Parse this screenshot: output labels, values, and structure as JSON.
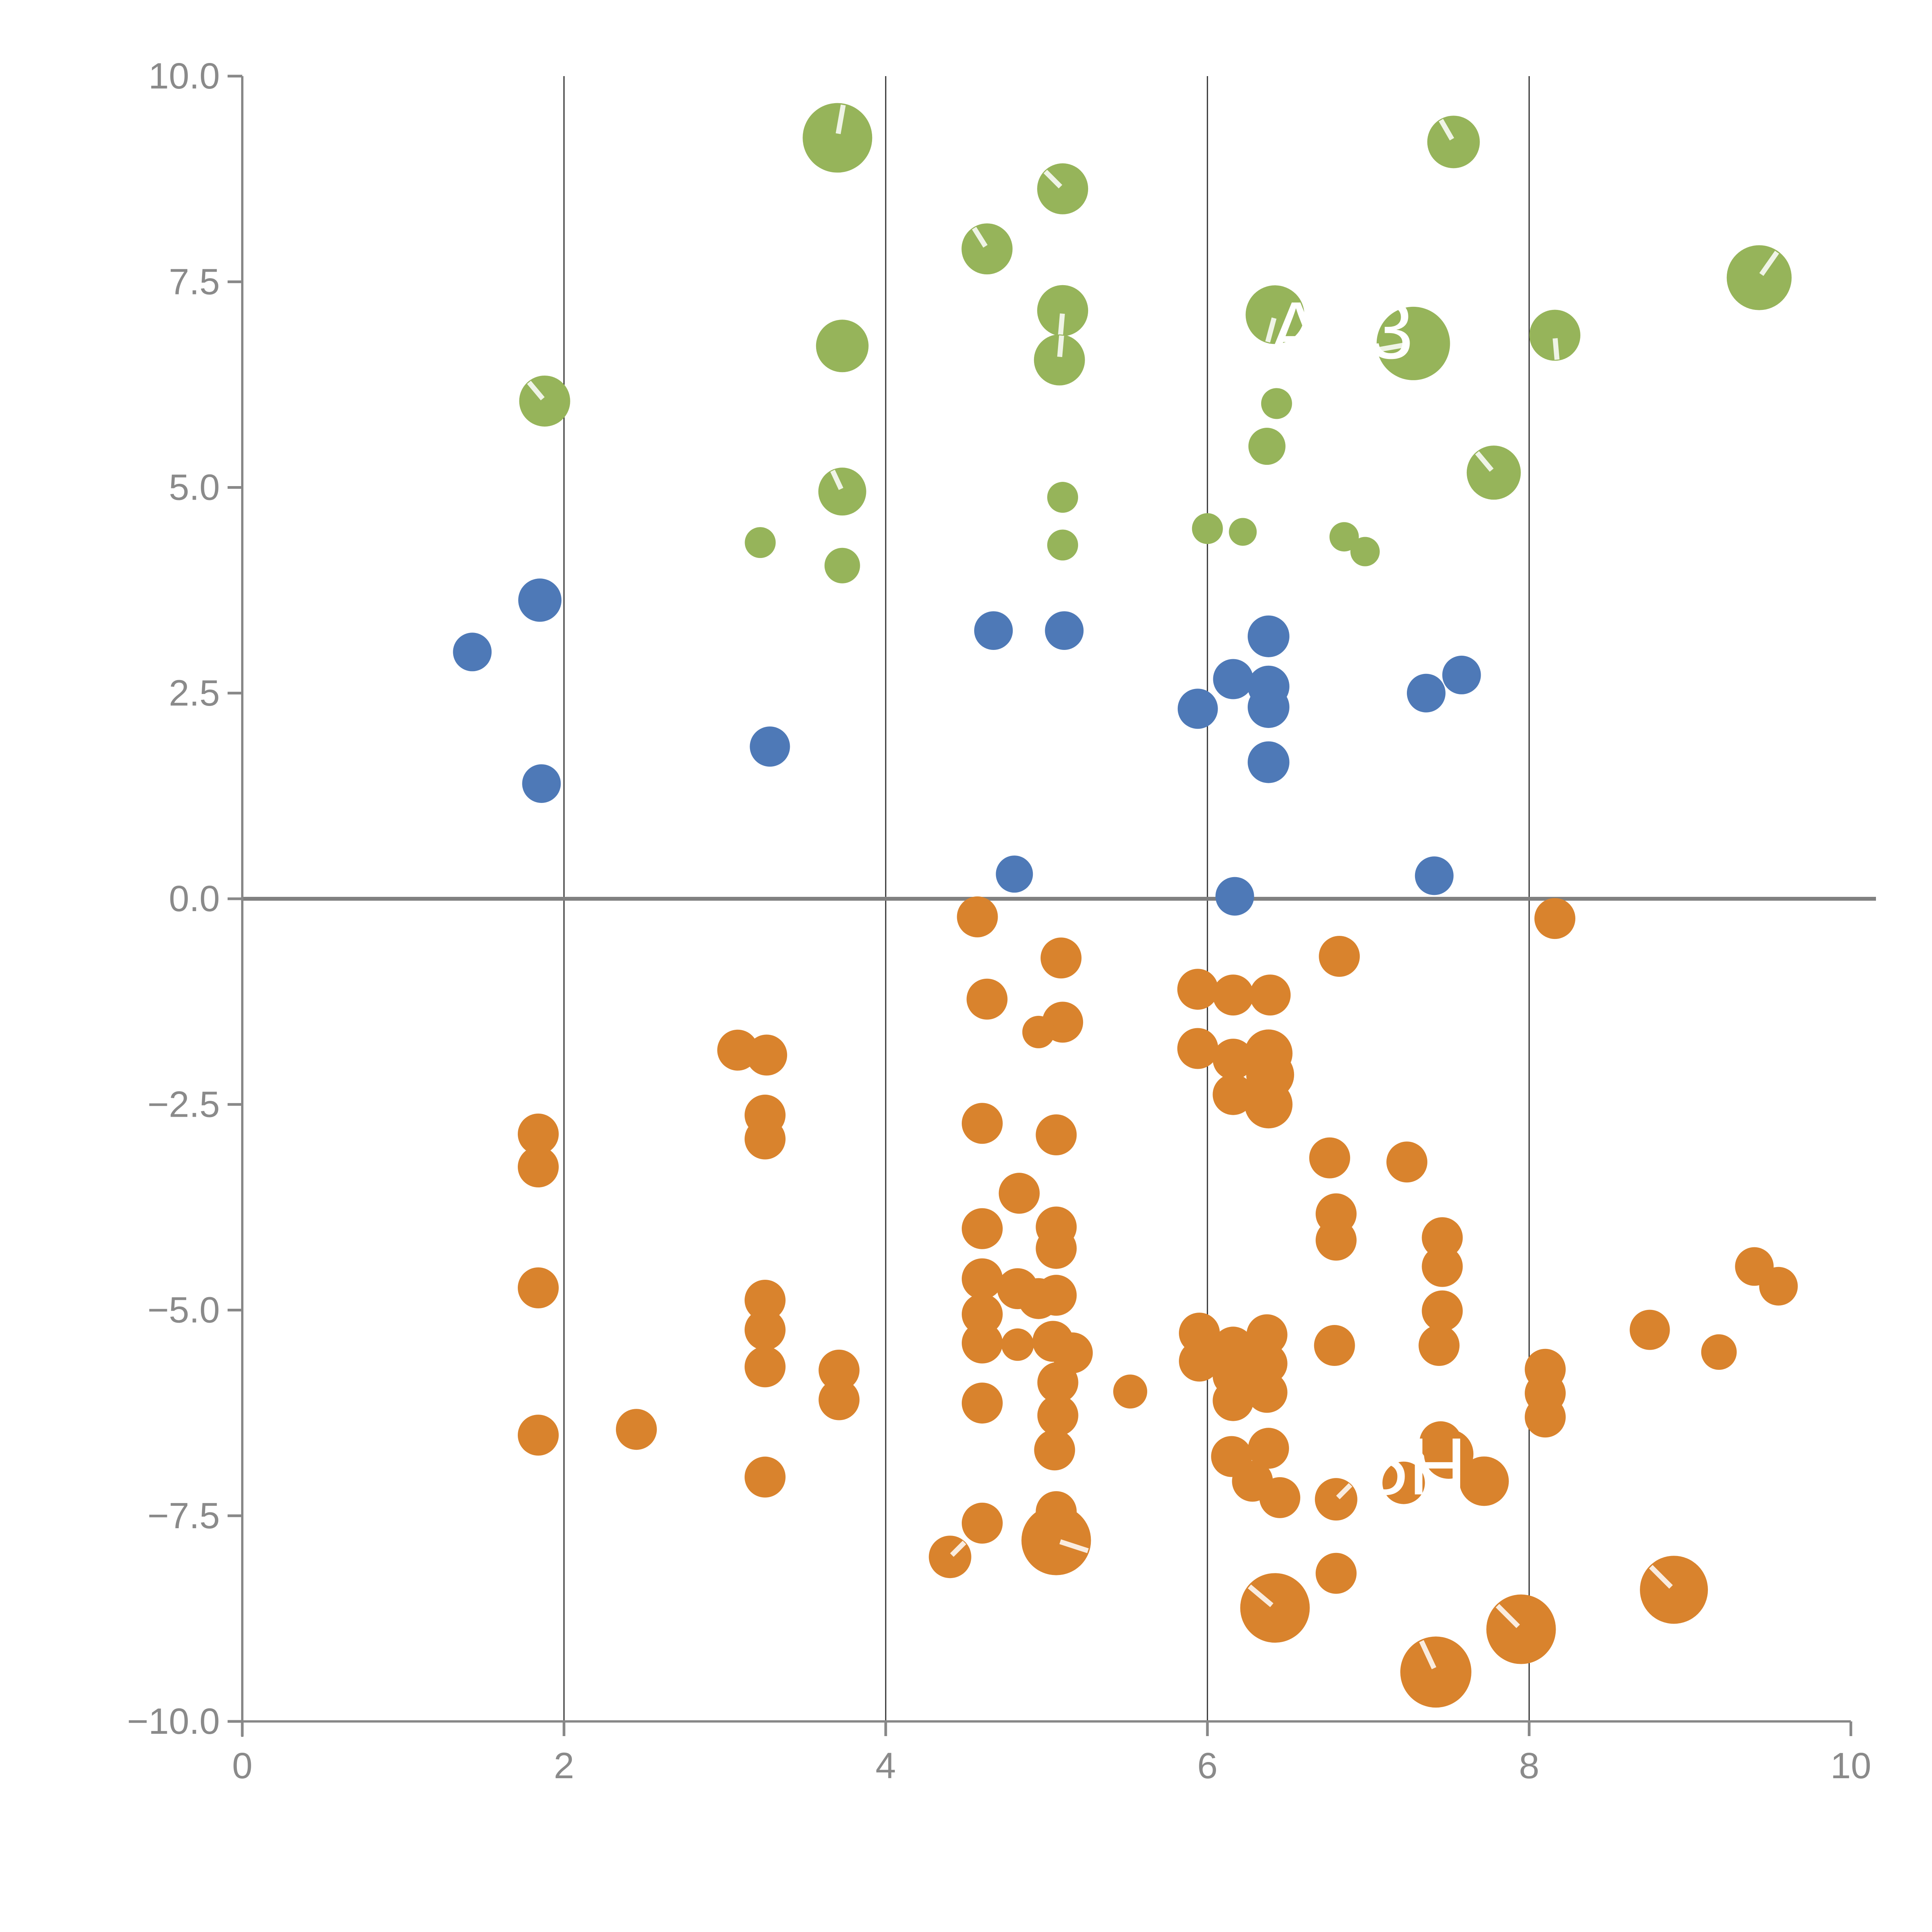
{
  "figure": {
    "title": "",
    "background": "#ffffff"
  },
  "chart_data": {
    "type": "scatter",
    "subtype": "bubble",
    "title": "",
    "xlabel": "",
    "ylabel": "",
    "xlim": [
      0,
      10
    ],
    "ylim": [
      -10,
      10
    ],
    "grid": "vertical-only",
    "grid_x": [
      2,
      4,
      6,
      8
    ],
    "zero_rule_y": 0,
    "x_tick_labels": [
      "0",
      "2",
      "4",
      "6",
      "8",
      "10"
    ],
    "x_tick_values": [
      0,
      2,
      4,
      6,
      8,
      10
    ],
    "y_tick_labels": [
      "10.0",
      "7.5",
      "5.0",
      "2.5",
      "0.0",
      "−2.5",
      "−5.0",
      "−7.5",
      "−10.0"
    ],
    "y_tick_values": [
      10,
      7.5,
      5,
      2.5,
      0,
      -2.5,
      -5,
      -7.5,
      -10
    ],
    "point_columns": [
      "x",
      "y",
      "radius_px",
      "slash_angle_deg"
    ],
    "series": [
      {
        "name": "green",
        "color": "#96B45A",
        "points": [
          [
            3.7,
            9.25,
            90,
            80
          ],
          [
            5.1,
            8.63,
            66,
            135
          ],
          [
            4.63,
            7.9,
            66,
            122
          ],
          [
            5.1,
            7.15,
            66,
            265
          ],
          [
            5.08,
            6.55,
            66,
            85
          ],
          [
            3.73,
            6.72,
            68,
            null
          ],
          [
            1.88,
            6.05,
            66,
            130
          ],
          [
            3.73,
            4.95,
            62,
            115
          ],
          [
            3.22,
            4.33,
            40,
            null
          ],
          [
            3.73,
            4.05,
            46,
            null
          ],
          [
            5.1,
            4.88,
            40,
            null
          ],
          [
            5.1,
            4.3,
            40,
            null
          ],
          [
            6.0,
            4.5,
            40,
            null
          ],
          [
            6.22,
            4.46,
            36,
            null
          ],
          [
            6.37,
            5.5,
            48,
            null
          ],
          [
            6.42,
            7.1,
            76,
            255
          ],
          [
            7.28,
            6.75,
            95,
            190
          ],
          [
            6.43,
            6.02,
            40,
            null
          ],
          [
            7.53,
            9.2,
            68,
            120
          ],
          [
            8.16,
            6.85,
            66,
            275
          ],
          [
            7.78,
            5.18,
            70,
            130
          ],
          [
            6.85,
            4.4,
            38,
            null
          ],
          [
            6.98,
            4.22,
            38,
            null
          ],
          [
            9.43,
            7.55,
            84,
            55
          ]
        ]
      },
      {
        "name": "blue",
        "color": "#4E79B7",
        "points": [
          [
            1.43,
            3.0,
            50,
            null
          ],
          [
            1.85,
            3.63,
            56,
            null
          ],
          [
            1.86,
            1.4,
            50,
            null
          ],
          [
            3.28,
            1.85,
            52,
            null
          ],
          [
            4.67,
            3.26,
            50,
            null
          ],
          [
            5.11,
            3.26,
            50,
            null
          ],
          [
            4.8,
            0.3,
            48,
            null
          ],
          [
            6.17,
            0.03,
            50,
            null
          ],
          [
            7.41,
            0.28,
            50,
            null
          ],
          [
            5.94,
            2.31,
            52,
            null
          ],
          [
            6.16,
            2.67,
            52,
            null
          ],
          [
            6.38,
            3.19,
            54,
            null
          ],
          [
            6.38,
            2.58,
            54,
            null
          ],
          [
            6.38,
            2.33,
            54,
            null
          ],
          [
            6.38,
            1.66,
            54,
            null
          ],
          [
            7.36,
            2.5,
            50,
            null
          ],
          [
            7.58,
            2.72,
            50,
            null
          ]
        ]
      },
      {
        "name": "orange",
        "color": "#D9832D",
        "points": [
          [
            4.57,
            -0.22,
            53,
            null
          ],
          [
            8.16,
            -0.24,
            53,
            null
          ],
          [
            5.09,
            -0.72,
            53,
            null
          ],
          [
            6.82,
            -0.7,
            53,
            null
          ],
          [
            4.63,
            -1.22,
            53,
            null
          ],
          [
            5.1,
            -1.5,
            53,
            null
          ],
          [
            4.95,
            -1.62,
            42,
            null
          ],
          [
            5.94,
            -1.1,
            53,
            null
          ],
          [
            6.16,
            -1.17,
            53,
            null
          ],
          [
            6.39,
            -1.17,
            53,
            null
          ],
          [
            5.94,
            -1.82,
            53,
            null
          ],
          [
            6.16,
            -1.95,
            53,
            null
          ],
          [
            6.38,
            -1.88,
            62,
            null
          ],
          [
            6.39,
            -2.14,
            62,
            null
          ],
          [
            6.16,
            -2.38,
            53,
            null
          ],
          [
            6.38,
            -2.5,
            62,
            null
          ],
          [
            1.84,
            -2.86,
            53,
            null
          ],
          [
            1.84,
            -3.26,
            53,
            null
          ],
          [
            1.84,
            -4.73,
            53,
            null
          ],
          [
            1.84,
            -6.52,
            53,
            null
          ],
          [
            2.45,
            -6.45,
            53,
            null
          ],
          [
            3.08,
            -1.84,
            53,
            null
          ],
          [
            3.26,
            -1.9,
            53,
            null
          ],
          [
            3.25,
            -2.63,
            53,
            null
          ],
          [
            3.25,
            -2.92,
            53,
            null
          ],
          [
            3.25,
            -4.88,
            53,
            null
          ],
          [
            3.25,
            -5.24,
            53,
            null
          ],
          [
            3.25,
            -5.69,
            53,
            null
          ],
          [
            3.71,
            -5.73,
            53,
            null
          ],
          [
            3.71,
            -6.09,
            53,
            null
          ],
          [
            3.25,
            -7.03,
            53,
            null
          ],
          [
            4.6,
            -2.73,
            53,
            null
          ],
          [
            5.06,
            -2.87,
            53,
            null
          ],
          [
            4.83,
            -3.58,
            53,
            null
          ],
          [
            4.6,
            -4.01,
            53,
            null
          ],
          [
            5.06,
            -3.99,
            53,
            null
          ],
          [
            5.06,
            -4.25,
            53,
            null
          ],
          [
            4.6,
            -4.62,
            53,
            null
          ],
          [
            4.82,
            -4.74,
            53,
            null
          ],
          [
            4.95,
            -4.86,
            53,
            null
          ],
          [
            5.06,
            -4.82,
            53,
            null
          ],
          [
            4.6,
            -5.05,
            53,
            null
          ],
          [
            4.6,
            -5.4,
            53,
            null
          ],
          [
            4.82,
            -5.42,
            42,
            null
          ],
          [
            5.04,
            -5.38,
            53,
            null
          ],
          [
            5.16,
            -5.52,
            53,
            null
          ],
          [
            5.07,
            -5.88,
            53,
            null
          ],
          [
            5.07,
            -6.28,
            53,
            null
          ],
          [
            5.05,
            -6.7,
            53,
            null
          ],
          [
            4.6,
            -6.13,
            53,
            null
          ],
          [
            5.52,
            -5.99,
            44,
            null
          ],
          [
            4.6,
            -7.59,
            53,
            null
          ],
          [
            5.06,
            -7.45,
            53,
            null
          ],
          [
            5.06,
            -7.8,
            90,
            -18
          ],
          [
            4.4,
            -8.0,
            55,
            45
          ],
          [
            5.95,
            -5.28,
            53,
            null
          ],
          [
            5.95,
            -5.62,
            53,
            null
          ],
          [
            6.16,
            -5.45,
            53,
            null
          ],
          [
            6.16,
            -5.8,
            53,
            null
          ],
          [
            6.37,
            -5.3,
            53,
            null
          ],
          [
            6.37,
            -5.65,
            53,
            null
          ],
          [
            6.16,
            -6.1,
            53,
            null
          ],
          [
            6.37,
            -6.0,
            53,
            null
          ],
          [
            6.15,
            -6.78,
            53,
            null
          ],
          [
            6.38,
            -6.68,
            53,
            null
          ],
          [
            6.28,
            -7.08,
            53,
            null
          ],
          [
            6.45,
            -7.28,
            53,
            null
          ],
          [
            6.8,
            -7.3,
            55,
            45
          ],
          [
            6.8,
            -8.2,
            53,
            null
          ],
          [
            7.24,
            -3.2,
            53,
            null
          ],
          [
            6.76,
            -3.15,
            53,
            null
          ],
          [
            6.8,
            -3.83,
            53,
            null
          ],
          [
            6.8,
            -4.15,
            53,
            null
          ],
          [
            7.46,
            -4.12,
            53,
            null
          ],
          [
            7.46,
            -4.47,
            53,
            null
          ],
          [
            7.46,
            -5.01,
            53,
            null
          ],
          [
            7.44,
            -5.43,
            53,
            null
          ],
          [
            6.79,
            -5.43,
            53,
            null
          ],
          [
            8.1,
            -5.72,
            53,
            null
          ],
          [
            8.1,
            -6.01,
            53,
            null
          ],
          [
            8.1,
            -6.3,
            53,
            null
          ],
          [
            7.45,
            -6.61,
            55,
            null
          ],
          [
            7.5,
            -6.75,
            64,
            null
          ],
          [
            7.72,
            -7.08,
            64,
            null
          ],
          [
            7.22,
            -7.1,
            55,
            null
          ],
          [
            9.4,
            -4.47,
            50,
            null
          ],
          [
            9.55,
            -4.71,
            50,
            null
          ],
          [
            8.75,
            -5.24,
            52,
            null
          ],
          [
            9.18,
            -5.51,
            46,
            null
          ],
          [
            6.42,
            -8.62,
            90,
            140
          ],
          [
            7.42,
            -9.4,
            92,
            115
          ],
          [
            7.95,
            -8.88,
            90,
            135
          ],
          [
            8.9,
            -8.4,
            88,
            135
          ]
        ]
      }
    ],
    "annotations": [
      {
        "text": "A",
        "x": 6.55,
        "y": 6.91,
        "color": "#ffffff"
      },
      {
        "text": "3",
        "x": 7.14,
        "y": 6.91,
        "color": "#ffffff"
      },
      {
        "text": "5H",
        "x": 7.29,
        "y": -6.9,
        "color": "#ffffff"
      }
    ],
    "style": {
      "axis_color": "#888888",
      "tick_label_color": "#8a8a8a",
      "gridline_color": "#2e2e2e",
      "zero_rule_color": "#808080",
      "slash_color": "rgba(255,255,255,0.85)",
      "legend": "none"
    }
  }
}
